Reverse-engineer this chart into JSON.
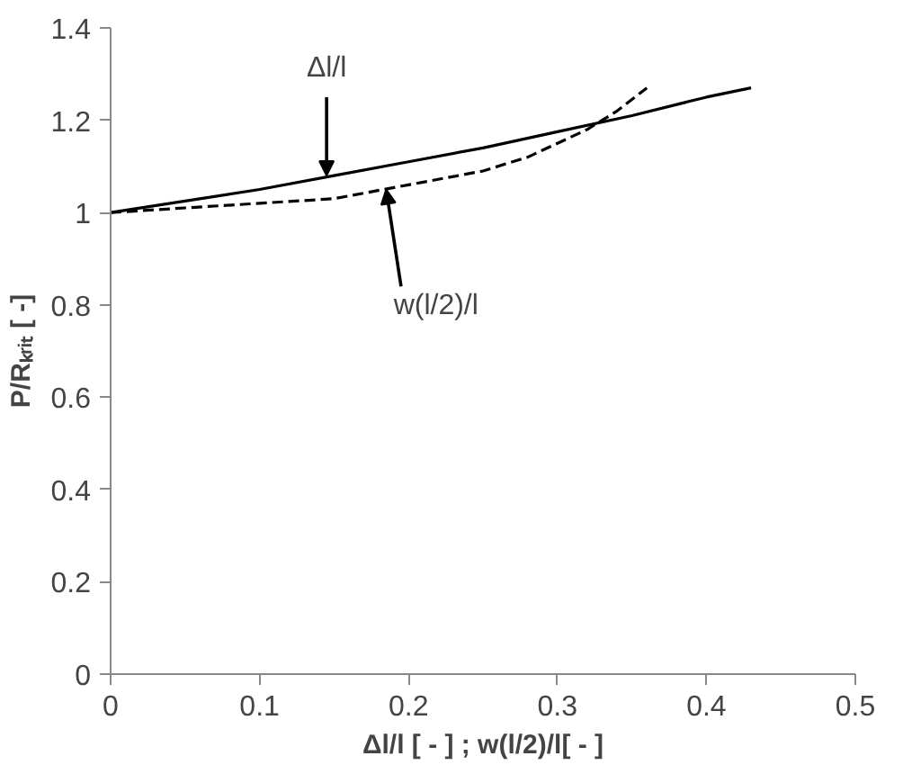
{
  "chart_data": {
    "type": "line",
    "xlabel": "Δl/l [ - ] ; w(l/2)/l[ - ]",
    "ylabel": "P/Rₖᵣᵢₜ [ -]",
    "xlim": [
      0,
      0.5
    ],
    "xticks": [
      0,
      0.1,
      0.2,
      0.3,
      0.4,
      0.5
    ],
    "ylim": [
      0,
      1.4
    ],
    "yticks": [
      0,
      0.2,
      0.4,
      0.6,
      0.8,
      1,
      1.2,
      1.4
    ],
    "grid": false,
    "series": [
      {
        "color": "#000000",
        "line_style": "solid",
        "x": [
          0,
          0.05,
          0.1,
          0.15,
          0.2,
          0.25,
          0.3,
          0.35,
          0.4,
          0.43
        ],
        "values": [
          1.0,
          1.025,
          1.05,
          1.08,
          1.11,
          1.14,
          1.175,
          1.21,
          1.25,
          1.27
        ]
      },
      {
        "color": "#000000",
        "line_style": "dashed",
        "x": [
          0,
          0.05,
          0.1,
          0.15,
          0.2,
          0.25,
          0.28,
          0.3,
          0.32,
          0.34,
          0.36
        ],
        "values": [
          1.0,
          1.01,
          1.02,
          1.03,
          1.06,
          1.09,
          1.12,
          1.15,
          1.18,
          1.22,
          1.27
        ]
      }
    ],
    "annotations": [
      {
        "text": "Δl/l",
        "x": 0.145,
        "y": 1.08
      },
      {
        "text": "w(l/2)/l",
        "x": 0.185,
        "y": 1.05
      }
    ]
  }
}
